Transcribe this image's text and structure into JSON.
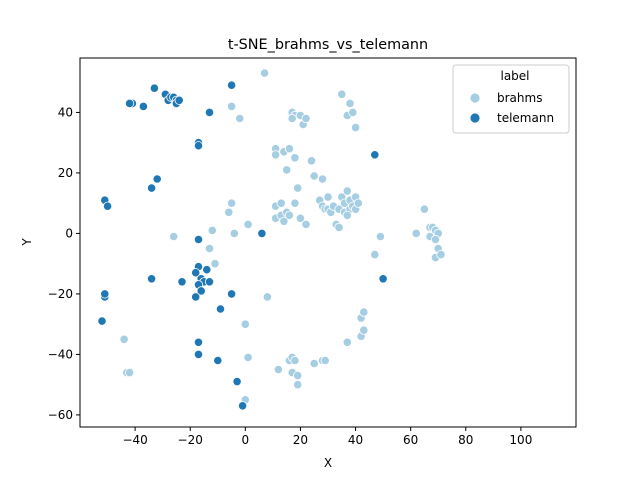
{
  "chart_data": {
    "type": "scatter",
    "title": "t-SNE_brahms_vs_telemann",
    "xlabel": "X",
    "ylabel": "Y",
    "xlim": [
      -60,
      120
    ],
    "ylim": [
      -64,
      58
    ],
    "xticks": [
      -40,
      -20,
      0,
      20,
      40,
      60,
      80,
      100
    ],
    "yticks": [
      -60,
      -40,
      -20,
      0,
      20,
      40
    ],
    "grid": false,
    "legend": {
      "title": "label",
      "position": "top-right"
    },
    "series": [
      {
        "name": "brahms",
        "color": "#a6cee3",
        "points": [
          [
            7,
            53
          ],
          [
            -5,
            42
          ],
          [
            -2,
            38
          ],
          [
            -26,
            -1
          ],
          [
            -12,
            1
          ],
          [
            -13,
            -5
          ],
          [
            -11,
            -10
          ],
          [
            -4,
            0
          ],
          [
            -6,
            7
          ],
          [
            -5,
            10
          ],
          [
            1,
            3
          ],
          [
            -44,
            -35
          ],
          [
            -43,
            -46
          ],
          [
            -42,
            -46
          ],
          [
            8,
            -21
          ],
          [
            0,
            -30
          ],
          [
            1,
            -41
          ],
          [
            0,
            -55
          ],
          [
            17,
            40
          ],
          [
            18,
            39
          ],
          [
            17,
            38
          ],
          [
            20,
            39
          ],
          [
            21,
            36
          ],
          [
            22,
            38
          ],
          [
            11,
            28
          ],
          [
            11,
            26
          ],
          [
            14,
            27
          ],
          [
            16,
            28
          ],
          [
            18,
            25
          ],
          [
            15,
            21
          ],
          [
            24,
            24
          ],
          [
            25,
            19
          ],
          [
            28,
            18
          ],
          [
            11,
            9
          ],
          [
            13,
            10
          ],
          [
            11,
            5
          ],
          [
            13,
            6
          ],
          [
            14,
            4
          ],
          [
            15,
            7
          ],
          [
            16,
            6
          ],
          [
            19,
            15
          ],
          [
            18,
            10
          ],
          [
            20,
            5
          ],
          [
            22,
            3
          ],
          [
            27,
            11
          ],
          [
            28,
            9
          ],
          [
            29,
            8
          ],
          [
            30,
            12
          ],
          [
            30,
            8
          ],
          [
            31,
            7
          ],
          [
            32,
            9
          ],
          [
            33,
            3
          ],
          [
            34,
            2
          ],
          [
            34,
            8
          ],
          [
            36,
            7
          ],
          [
            35,
            12
          ],
          [
            36,
            10
          ],
          [
            37,
            14
          ],
          [
            38,
            8
          ],
          [
            38,
            11
          ],
          [
            37,
            6
          ],
          [
            39,
            9
          ],
          [
            40,
            8
          ],
          [
            40,
            12
          ],
          [
            41,
            10
          ],
          [
            35,
            46
          ],
          [
            38,
            43
          ],
          [
            37,
            39
          ],
          [
            39,
            40
          ],
          [
            40,
            35
          ],
          [
            16,
            -42
          ],
          [
            17,
            -41
          ],
          [
            18,
            -42
          ],
          [
            17,
            -46
          ],
          [
            19,
            -47
          ],
          [
            19,
            -50
          ],
          [
            12,
            -45
          ],
          [
            25,
            -43
          ],
          [
            28,
            -42
          ],
          [
            29,
            -42
          ],
          [
            37,
            -36
          ],
          [
            42,
            -34
          ],
          [
            43,
            -32
          ],
          [
            42,
            -28
          ],
          [
            43,
            -26
          ],
          [
            47,
            -7
          ],
          [
            49,
            -1
          ],
          [
            62,
            0
          ],
          [
            65,
            8
          ],
          [
            67,
            2
          ],
          [
            67,
            -1
          ],
          [
            68,
            2
          ],
          [
            69,
            1
          ],
          [
            70,
            0
          ],
          [
            69,
            -2
          ],
          [
            70,
            -5
          ],
          [
            69,
            -8
          ],
          [
            71,
            -7
          ]
        ]
      },
      {
        "name": "telemann",
        "color": "#1f78b4",
        "points": [
          [
            -41,
            43
          ],
          [
            -42,
            43
          ],
          [
            -37,
            42
          ],
          [
            -33,
            48
          ],
          [
            -29,
            46
          ],
          [
            -28,
            44
          ],
          [
            -27,
            45
          ],
          [
            -26,
            45
          ],
          [
            -25,
            44
          ],
          [
            -25,
            43
          ],
          [
            -24,
            44
          ],
          [
            -13,
            40
          ],
          [
            -5,
            49
          ],
          [
            -17,
            30
          ],
          [
            -17,
            29
          ],
          [
            -32,
            18
          ],
          [
            -34,
            15
          ],
          [
            -51,
            11
          ],
          [
            -50,
            9
          ],
          [
            -17,
            -2
          ],
          [
            6,
            0
          ],
          [
            -17,
            -11
          ],
          [
            -14,
            -12
          ],
          [
            -18,
            -13
          ],
          [
            -16,
            -15
          ],
          [
            -15,
            -16
          ],
          [
            -13,
            -16
          ],
          [
            -17,
            -17
          ],
          [
            -16,
            -19
          ],
          [
            -23,
            -16
          ],
          [
            -18,
            -21
          ],
          [
            -34,
            -15
          ],
          [
            -51,
            -21
          ],
          [
            -51,
            -20
          ],
          [
            -52,
            -29
          ],
          [
            -5,
            -20
          ],
          [
            -9,
            -25
          ],
          [
            -17,
            -36
          ],
          [
            -17,
            -40
          ],
          [
            -10,
            -42
          ],
          [
            -3,
            -49
          ],
          [
            -1,
            -57
          ],
          [
            47,
            26
          ],
          [
            50,
            -15
          ]
        ]
      }
    ]
  }
}
